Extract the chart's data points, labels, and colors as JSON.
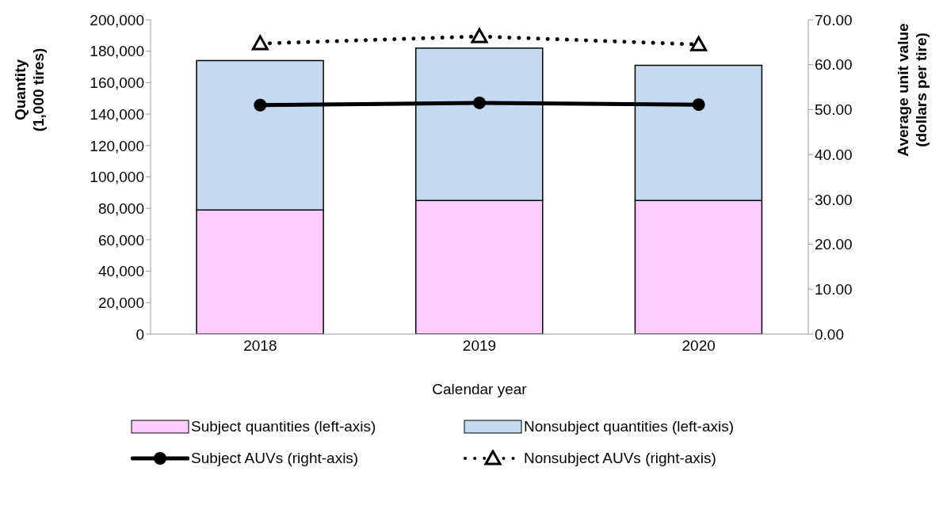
{
  "chart_data": {
    "type": "bar",
    "stacked": true,
    "categories": [
      "2018",
      "2019",
      "2020"
    ],
    "xlabel": "Calendar year",
    "ylabel": "Quantity (1,000 tires)",
    "y2label": "Average unit value (dollars per tire)",
    "series": [
      {
        "name": "Subject quantities (left-axis)",
        "color": "#ffccff",
        "values": [
          79000,
          85000,
          85000
        ]
      },
      {
        "name": "Nonsubject quantities (left-axis)",
        "color": "#c5d9f1",
        "values": [
          95000,
          97000,
          86000
        ]
      },
      {
        "name": "Subject AUVs (right-axis)",
        "type": "line",
        "axis": "y2",
        "color": "#000000",
        "marker": "circle",
        "line_style": "solid",
        "values": [
          51.0,
          51.5,
          51.1
        ]
      },
      {
        "name": "Nonsubject AUVs (right-axis)",
        "type": "line",
        "axis": "y2",
        "color": "#000000",
        "marker": "triangle",
        "line_style": "dotted",
        "values": [
          64.7,
          66.3,
          64.5
        ]
      }
    ],
    "ylim": [
      0,
      200000
    ],
    "yticks": [
      {
        "value": 0,
        "label": "0"
      },
      {
        "value": 20000,
        "label": "20,000"
      },
      {
        "value": 40000,
        "label": "40,000"
      },
      {
        "value": 60000,
        "label": "60,000"
      },
      {
        "value": 80000,
        "label": "80,000"
      },
      {
        "value": 100000,
        "label": "100,000"
      },
      {
        "value": 120000,
        "label": "120,000"
      },
      {
        "value": 140000,
        "label": "140,000"
      },
      {
        "value": 160000,
        "label": "160,000"
      },
      {
        "value": 180000,
        "label": "180,000"
      },
      {
        "value": 200000,
        "label": "200,000"
      }
    ],
    "y2lim": [
      0,
      70
    ],
    "y2ticks": [
      {
        "value": 0,
        "label": "0.00"
      },
      {
        "value": 10,
        "label": "10.00"
      },
      {
        "value": 20,
        "label": "20.00"
      },
      {
        "value": 30,
        "label": "30.00"
      },
      {
        "value": 40,
        "label": "40.00"
      },
      {
        "value": 50,
        "label": "50.00"
      },
      {
        "value": 60,
        "label": "60.00"
      },
      {
        "value": 70,
        "label": "70.00"
      }
    ],
    "grid": false,
    "legend": "bottom"
  }
}
